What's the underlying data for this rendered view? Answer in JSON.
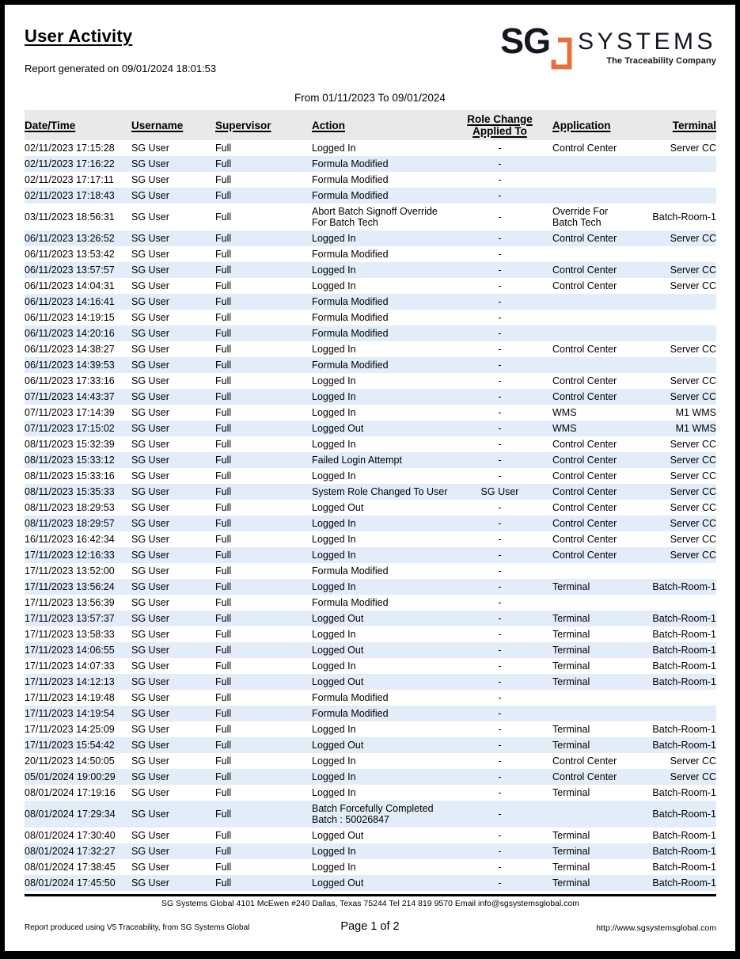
{
  "page": {
    "title": "User Activity",
    "generated_line": "Report generated on 09/01/2024 18:01:53",
    "date_range": "From 01/11/2023 To 09/01/2024"
  },
  "logo": {
    "monogram": "SG",
    "name": "SYSTEMS",
    "tagline": "The Traceability Company",
    "accent_color": "#E8703F",
    "text_color": "#16161F"
  },
  "table": {
    "header_bg": "#E9E9E9",
    "zebra_color": "#E2EDF9",
    "columns": [
      {
        "label": "Date/Time",
        "align": "left"
      },
      {
        "label": "Username",
        "align": "left"
      },
      {
        "label": "Supervisor",
        "align": "left"
      },
      {
        "label": "Action",
        "align": "left"
      },
      {
        "label": "Role Change\nApplied To",
        "align": "center"
      },
      {
        "label": "Application",
        "align": "left"
      },
      {
        "label": "Terminal",
        "align": "right"
      }
    ],
    "rows": [
      [
        "02/11/2023 17:15:28",
        "SG User",
        "Full",
        "Logged In",
        "-",
        "Control Center",
        "Server CC"
      ],
      [
        "02/11/2023 17:16:22",
        "SG User",
        "Full",
        "Formula Modified",
        "-",
        "",
        ""
      ],
      [
        "02/11/2023 17:17:11",
        "SG User",
        "Full",
        "Formula Modified",
        "-",
        "",
        ""
      ],
      [
        "02/11/2023 17:18:43",
        "SG User",
        "Full",
        "Formula Modified",
        "-",
        "",
        ""
      ],
      [
        "03/11/2023 18:56:31",
        "SG User",
        "Full",
        "Abort Batch Signoff Override\nFor Batch Tech",
        "-",
        "Override For\nBatch Tech",
        "Batch-Room-1"
      ],
      [
        "06/11/2023 13:26:52",
        "SG User",
        "Full",
        "Logged In",
        "-",
        "Control Center",
        "Server CC"
      ],
      [
        "06/11/2023 13:53:42",
        "SG User",
        "Full",
        "Formula Modified",
        "-",
        "",
        ""
      ],
      [
        "06/11/2023 13:57:57",
        "SG User",
        "Full",
        "Logged In",
        "-",
        "Control Center",
        "Server CC"
      ],
      [
        "06/11/2023 14:04:31",
        "SG User",
        "Full",
        "Logged In",
        "-",
        "Control Center",
        "Server CC"
      ],
      [
        "06/11/2023 14:16:41",
        "SG User",
        "Full",
        "Formula Modified",
        "-",
        "",
        ""
      ],
      [
        "06/11/2023 14:19:15",
        "SG User",
        "Full",
        "Formula Modified",
        "-",
        "",
        ""
      ],
      [
        "06/11/2023 14:20:16",
        "SG User",
        "Full",
        "Formula Modified",
        "-",
        "",
        ""
      ],
      [
        "06/11/2023 14:38:27",
        "SG User",
        "Full",
        "Logged In",
        "-",
        "Control Center",
        "Server CC"
      ],
      [
        "06/11/2023 14:39:53",
        "SG User",
        "Full",
        "Formula Modified",
        "-",
        "",
        ""
      ],
      [
        "06/11/2023 17:33:16",
        "SG User",
        "Full",
        "Logged In",
        "-",
        "Control Center",
        "Server CC"
      ],
      [
        "07/11/2023 14:43:37",
        "SG User",
        "Full",
        "Logged In",
        "-",
        "Control Center",
        "Server CC"
      ],
      [
        "07/11/2023 17:14:39",
        "SG User",
        "Full",
        "Logged In",
        "-",
        "WMS",
        "M1 WMS"
      ],
      [
        "07/11/2023 17:15:02",
        "SG User",
        "Full",
        "Logged Out",
        "-",
        "WMS",
        "M1 WMS"
      ],
      [
        "08/11/2023 15:32:39",
        "SG User",
        "Full",
        "Logged In",
        "-",
        "Control Center",
        "Server CC"
      ],
      [
        "08/11/2023 15:33:12",
        "SG User",
        "Full",
        "Failed Login Attempt",
        "-",
        "Control Center",
        "Server CC"
      ],
      [
        "08/11/2023 15:33:16",
        "SG User",
        "Full",
        "Logged In",
        "-",
        "Control Center",
        "Server CC"
      ],
      [
        "08/11/2023 15:35:33",
        "SG User",
        "Full",
        "System Role Changed To User",
        "SG User",
        "Control Center",
        "Server CC"
      ],
      [
        "08/11/2023 18:29:53",
        "SG User",
        "Full",
        "Logged Out",
        "-",
        "Control Center",
        "Server CC"
      ],
      [
        "08/11/2023 18:29:57",
        "SG User",
        "Full",
        "Logged In",
        "-",
        "Control Center",
        "Server CC"
      ],
      [
        "16/11/2023 16:42:34",
        "SG User",
        "Full",
        "Logged In",
        "-",
        "Control Center",
        "Server CC"
      ],
      [
        "17/11/2023 12:16:33",
        "SG User",
        "Full",
        "Logged In",
        "-",
        "Control Center",
        "Server CC"
      ],
      [
        "17/11/2023 13:52:00",
        "SG User",
        "Full",
        "Formula Modified",
        "-",
        "",
        ""
      ],
      [
        "17/11/2023 13:56:24",
        "SG User",
        "Full",
        "Logged In",
        "-",
        "Terminal",
        "Batch-Room-1"
      ],
      [
        "17/11/2023 13:56:39",
        "SG User",
        "Full",
        "Formula Modified",
        "-",
        "",
        ""
      ],
      [
        "17/11/2023 13:57:37",
        "SG User",
        "Full",
        "Logged Out",
        "-",
        "Terminal",
        "Batch-Room-1"
      ],
      [
        "17/11/2023 13:58:33",
        "SG User",
        "Full",
        "Logged In",
        "-",
        "Terminal",
        "Batch-Room-1"
      ],
      [
        "17/11/2023 14:06:55",
        "SG User",
        "Full",
        "Logged Out",
        "-",
        "Terminal",
        "Batch-Room-1"
      ],
      [
        "17/11/2023 14:07:33",
        "SG User",
        "Full",
        "Logged In",
        "-",
        "Terminal",
        "Batch-Room-1"
      ],
      [
        "17/11/2023 14:12:13",
        "SG User",
        "Full",
        "Logged Out",
        "-",
        "Terminal",
        "Batch-Room-1"
      ],
      [
        "17/11/2023 14:19:48",
        "SG User",
        "Full",
        "Formula Modified",
        "-",
        "",
        ""
      ],
      [
        "17/11/2023 14:19:54",
        "SG User",
        "Full",
        "Formula Modified",
        "-",
        "",
        ""
      ],
      [
        "17/11/2023 14:25:09",
        "SG User",
        "Full",
        "Logged In",
        "-",
        "Terminal",
        "Batch-Room-1"
      ],
      [
        "17/11/2023 15:54:42",
        "SG User",
        "Full",
        "Logged Out",
        "-",
        "Terminal",
        "Batch-Room-1"
      ],
      [
        "20/11/2023 14:50:05",
        "SG User",
        "Full",
        "Logged In",
        "-",
        "Control Center",
        "Server CC"
      ],
      [
        "05/01/2024 19:00:29",
        "SG User",
        "Full",
        "Logged In",
        "-",
        "Control Center",
        "Server CC"
      ],
      [
        "08/01/2024 17:19:16",
        "SG User",
        "Full",
        "Logged In",
        "-",
        "Terminal",
        "Batch-Room-1"
      ],
      [
        "08/01/2024 17:29:34",
        "SG User",
        "Full",
        "Batch Forcefully Completed\nBatch : 50026847",
        "-",
        "",
        "Batch-Room-1"
      ],
      [
        "08/01/2024 17:30:40",
        "SG User",
        "Full",
        "Logged Out",
        "-",
        "Terminal",
        "Batch-Room-1"
      ],
      [
        "08/01/2024 17:32:27",
        "SG User",
        "Full",
        "Logged In",
        "-",
        "Terminal",
        "Batch-Room-1"
      ],
      [
        "08/01/2024 17:38:45",
        "SG User",
        "Full",
        "Logged In",
        "-",
        "Terminal",
        "Batch-Room-1"
      ],
      [
        "08/01/2024 17:45:50",
        "SG User",
        "Full",
        "Logged Out",
        "-",
        "Terminal",
        "Batch-Room-1"
      ]
    ]
  },
  "footer": {
    "contact": "SG Systems Global 4101 McEwen #240 Dallas, Texas 75244 Tel 214 819 9570 Email info@sgsystemsglobal.com",
    "produced": "Report produced using V5 Traceability, from SG Systems Global",
    "page_indicator": "Page 1 of 2",
    "website": "http://www.sgsystemsglobal.com"
  }
}
